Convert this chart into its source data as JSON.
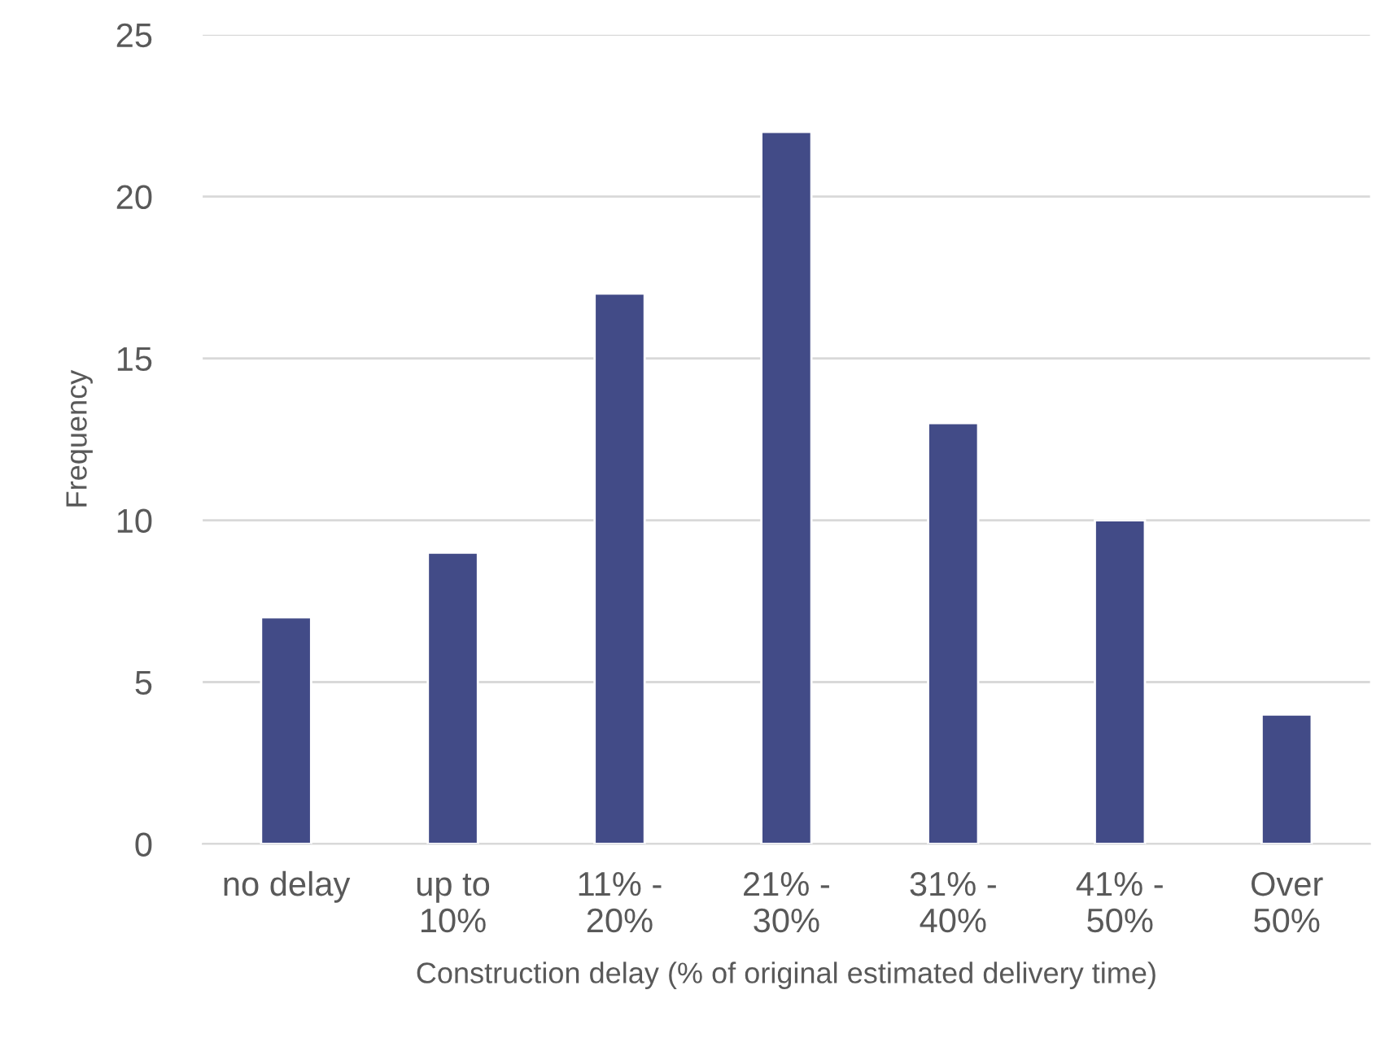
{
  "chart_data": {
    "type": "bar",
    "xlabel": "Construction delay (% of original estimated delivery time)",
    "ylabel": "Frequency",
    "categories": [
      "no delay",
      "up to\n10%",
      "11% -\n20%",
      "21% -\n30%",
      "31% -\n40%",
      "41% -\n50%",
      "Over\n50%"
    ],
    "values": [
      7,
      9,
      17,
      22,
      13,
      10,
      4
    ],
    "color": "#424b87",
    "ylim": [
      0,
      25
    ],
    "yticks": [
      0,
      5,
      10,
      15,
      20,
      25
    ],
    "grid": "y"
  }
}
